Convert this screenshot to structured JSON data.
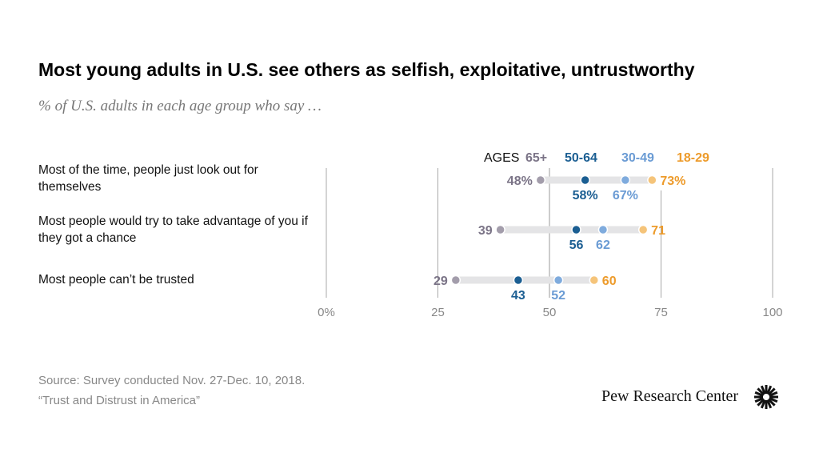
{
  "title": "Most young adults in U.S. see others as selfish, exploitative, untrustworthy",
  "subtitle": "% of U.S. adults in each age group who say …",
  "source": [
    "Source: Survey conducted Nov. 27-Dec. 10, 2018.",
    "“Trust and Distrust in America”"
  ],
  "logo": "Pew Research Center",
  "chart_data": {
    "type": "dot-plot",
    "legend_title": "AGES",
    "legend_placement": "top",
    "xlim": [
      0,
      100
    ],
    "xticks": [
      "0%",
      "25",
      "50",
      "75",
      "100"
    ],
    "grid": true,
    "categories": [
      "Most of the time, people just look out for themselves",
      "Most people would try to take advantage of you if they got a chance",
      "Most people can’t be trusted"
    ],
    "series": [
      {
        "name": "65+",
        "color": "#a39dab",
        "label_color": "#7b7487",
        "values": [
          48,
          39,
          29
        ]
      },
      {
        "name": "50-64",
        "color": "#1b5e92",
        "label_color": "#1b5e92",
        "values": [
          58,
          56,
          43
        ]
      },
      {
        "name": "30-49",
        "color": "#7fabdd",
        "label_color": "#6a9bd4",
        "values": [
          67,
          62,
          52
        ]
      },
      {
        "name": "18-29",
        "color": "#f5c47a",
        "label_color": "#ed9b2b",
        "values": [
          73,
          71,
          60
        ]
      }
    ],
    "first_row_percent": true
  }
}
